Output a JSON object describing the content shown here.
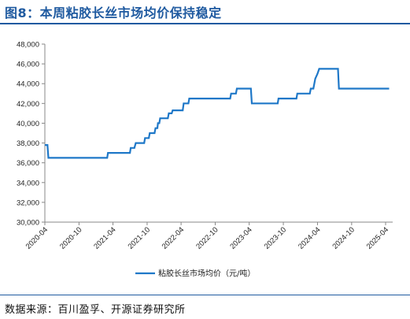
{
  "title": "图8：本周粘胶长丝市场均价保持稳定",
  "source": "数据来源：百川盈孚、开源证券研究所",
  "colors": {
    "accent": "#1f5aa0",
    "series": "#1f78c8"
  },
  "chart_data": {
    "type": "line",
    "title": "",
    "xlabel": "",
    "ylabel": "",
    "ylim": [
      30000,
      48000
    ],
    "y_ticks": [
      30000,
      32000,
      34000,
      36000,
      38000,
      40000,
      42000,
      44000,
      46000,
      48000
    ],
    "y_tick_labels": [
      "30,000",
      "32,000",
      "34,000",
      "36,000",
      "38,000",
      "40,000",
      "42,000",
      "44,000",
      "46,000",
      "48,000"
    ],
    "x_ticks": [
      "2020-04",
      "2020-10",
      "2021-04",
      "2021-10",
      "2022-04",
      "2022-10",
      "2023-04",
      "2023-10",
      "2024-04",
      "2024-10",
      "2025-04"
    ],
    "legend": "bottom",
    "grid": false,
    "series": [
      {
        "name": "粘胶长丝市场均价（元/吨）",
        "points": [
          [
            "2020-04-01",
            37800
          ],
          [
            "2020-04-15",
            37800
          ],
          [
            "2020-04-20",
            36500
          ],
          [
            "2021-03-01",
            36500
          ],
          [
            "2021-03-05",
            37000
          ],
          [
            "2021-07-01",
            37000
          ],
          [
            "2021-07-05",
            37500
          ],
          [
            "2021-07-25",
            37500
          ],
          [
            "2021-08-01",
            38000
          ],
          [
            "2021-09-15",
            38000
          ],
          [
            "2021-09-20",
            38500
          ],
          [
            "2021-10-10",
            38500
          ],
          [
            "2021-10-15",
            39000
          ],
          [
            "2021-11-10",
            39000
          ],
          [
            "2021-11-15",
            39500
          ],
          [
            "2021-11-25",
            39500
          ],
          [
            "2021-11-28",
            40000
          ],
          [
            "2021-12-05",
            40000
          ],
          [
            "2021-12-10",
            40500
          ],
          [
            "2022-01-20",
            40500
          ],
          [
            "2022-01-25",
            41000
          ],
          [
            "2022-02-10",
            41000
          ],
          [
            "2022-02-15",
            41300
          ],
          [
            "2022-04-10",
            41300
          ],
          [
            "2022-04-15",
            42000
          ],
          [
            "2022-05-10",
            42000
          ],
          [
            "2022-05-15",
            42500
          ],
          [
            "2022-12-20",
            42500
          ],
          [
            "2022-12-25",
            43000
          ],
          [
            "2023-01-20",
            43000
          ],
          [
            "2023-01-25",
            43500
          ],
          [
            "2023-04-10",
            43500
          ],
          [
            "2023-04-15",
            42000
          ],
          [
            "2023-09-01",
            42000
          ],
          [
            "2023-09-05",
            42500
          ],
          [
            "2023-12-10",
            42500
          ],
          [
            "2023-12-15",
            43000
          ],
          [
            "2024-02-20",
            43000
          ],
          [
            "2024-02-25",
            43500
          ],
          [
            "2024-03-10",
            43500
          ],
          [
            "2024-03-20",
            44500
          ],
          [
            "2024-04-01",
            45000
          ],
          [
            "2024-04-10",
            45500
          ],
          [
            "2024-07-20",
            45500
          ],
          [
            "2024-07-25",
            43500
          ],
          [
            "2025-04-20",
            43500
          ]
        ]
      }
    ]
  }
}
